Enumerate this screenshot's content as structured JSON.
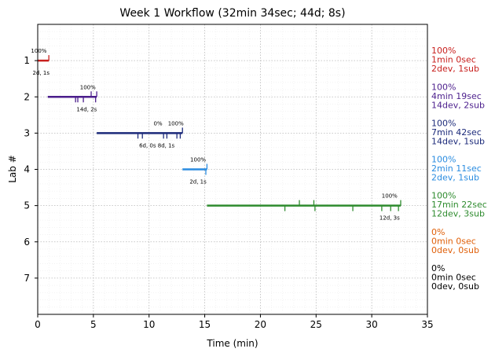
{
  "chart_data": {
    "type": "timeline",
    "title": "Week 1 Workflow (32min 34sec; 44d; 8s)",
    "xlabel": "Time (min)",
    "ylabel": "Lab #",
    "xlim": [
      0,
      35
    ],
    "ylim": [
      8,
      0
    ],
    "xticks": [
      0,
      5,
      10,
      15,
      20,
      25,
      30,
      35
    ],
    "yticks": [
      1,
      2,
      3,
      4,
      5,
      6,
      7
    ],
    "grid": true,
    "labs": [
      {
        "lab": 1,
        "color": "#c8201e",
        "start": 0.0,
        "end": 1.0,
        "ticks_up": [
          1.0
        ],
        "ticks_down": [],
        "pct_labels": [
          {
            "x": 0.1,
            "text": "100%"
          }
        ],
        "sub_label": {
          "x": 0.3,
          "text": "2d, 1s"
        },
        "summary": [
          "100%",
          "1min 0sec",
          "2dev, 1sub"
        ]
      },
      {
        "lab": 2,
        "color": "#4b1e8c",
        "start": 0.9,
        "end": 5.3,
        "ticks_up": [
          4.8,
          5.3
        ],
        "ticks_down": [
          3.4,
          3.6,
          4.1,
          5.2
        ],
        "pct_labels": [
          {
            "x": 4.5,
            "text": "100%"
          }
        ],
        "sub_label": {
          "x": 4.4,
          "text": "14d, 2s"
        },
        "summary": [
          "100%",
          "4min 19sec",
          "14dev, 2sub"
        ]
      },
      {
        "lab": 3,
        "color": "#1c2a7a",
        "start": 5.3,
        "end": 13.0,
        "ticks_up": [
          13.0
        ],
        "ticks_down": [
          9.0,
          9.4,
          11.3,
          11.6,
          12.5,
          12.8
        ],
        "pct_labels": [
          {
            "x": 10.8,
            "text": "0%"
          },
          {
            "x": 12.4,
            "text": "100%"
          }
        ],
        "sub_label": {
          "x": 10.7,
          "text": "6d, 0s 8d, 1s"
        },
        "summary": [
          "100%",
          "7min 42sec",
          "14dev, 1sub"
        ]
      },
      {
        "lab": 4,
        "color": "#2a8ce0",
        "start": 13.0,
        "end": 15.2,
        "ticks_up": [
          15.2
        ],
        "ticks_down": [
          15.1
        ],
        "pct_labels": [
          {
            "x": 14.4,
            "text": "100%"
          }
        ],
        "sub_label": {
          "x": 14.4,
          "text": "2d, 1s"
        },
        "summary": [
          "100%",
          "2min 11sec",
          "2dev, 1sub"
        ]
      },
      {
        "lab": 5,
        "color": "#2e8b2e",
        "start": 15.2,
        "end": 32.6,
        "ticks_up": [
          23.5,
          24.8,
          32.6
        ],
        "ticks_down": [
          22.2,
          24.9,
          28.3,
          30.9,
          31.7,
          32.4
        ],
        "pct_labels": [
          {
            "x": 31.6,
            "text": "100%"
          }
        ],
        "sub_label": {
          "x": 31.6,
          "text": "12d, 3s"
        },
        "summary": [
          "100%",
          "17min 22sec",
          "12dev, 3sub"
        ]
      },
      {
        "lab": 6,
        "color": "#e0600a",
        "summary": [
          "0%",
          "0min 0sec",
          "0dev, 0sub"
        ]
      },
      {
        "lab": 7,
        "color": "#000000",
        "summary": [
          "0%",
          "0min 0sec",
          "0dev, 0sub"
        ]
      }
    ]
  }
}
